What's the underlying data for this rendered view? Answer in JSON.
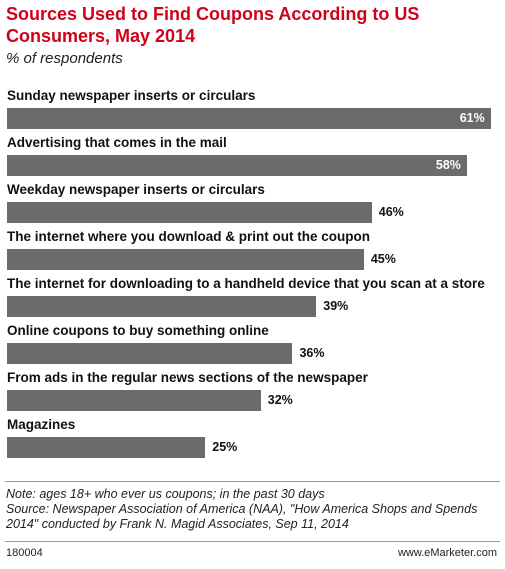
{
  "chart_data": {
    "type": "bar",
    "title": "Sources Used to Find Coupons According to US Consumers, May 2014",
    "subtitle": "% of respondents",
    "categories": [
      "Sunday newspaper inserts or circulars",
      "Advertising that comes in the mail",
      "Weekday newspaper inserts or circulars",
      "The internet where you download & print out the coupon",
      "The internet for downloading to a handheld device that you scan at a store",
      "Online coupons to buy something online",
      "From ads in the regular news sections of the newspaper",
      "Magazines"
    ],
    "values": [
      61,
      58,
      46,
      45,
      39,
      36,
      32,
      25
    ],
    "value_labels": [
      "61%",
      "58%",
      "46%",
      "45%",
      "39%",
      "36%",
      "32%",
      "25%"
    ],
    "color": "#6b6b6b",
    "note": "Note: ages 18+ who ever us coupons; in the past 30 days",
    "source": "Source: Newspaper Association of America (NAA), \"How America Shops and Spends 2014\" conducted by Frank N. Magid Associates, Sep 11, 2014",
    "chart_id": "180004",
    "website": "www.eMarketer.com"
  }
}
